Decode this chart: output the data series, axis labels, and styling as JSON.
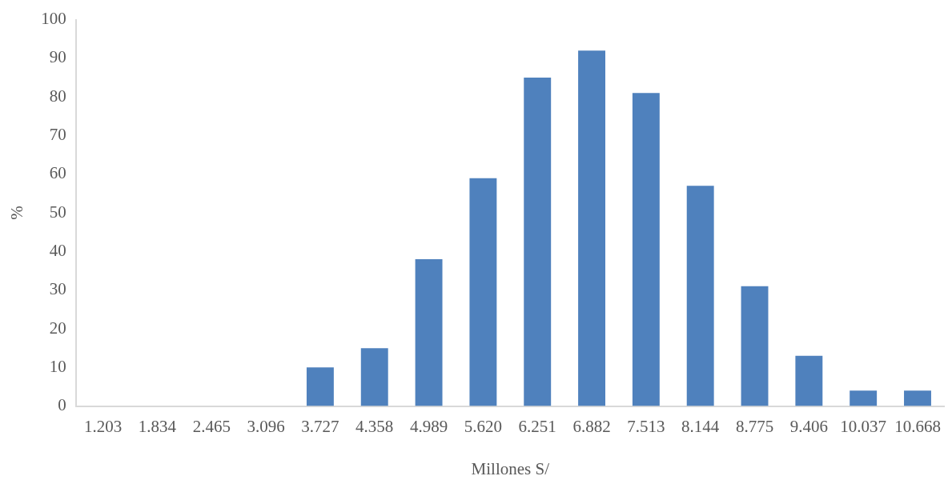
{
  "chart_data": {
    "type": "bar",
    "xlabel": "Millones S/",
    "ylabel": "%",
    "categories": [
      "1.203",
      "1.834",
      "2.465",
      "3.096",
      "3.727",
      "4.358",
      "4.989",
      "5.620",
      "6.251",
      "6.882",
      "7.513",
      "8.144",
      "8.775",
      "9.406",
      "10.037",
      "10.668"
    ],
    "values": [
      0,
      0,
      0,
      0,
      10,
      15,
      38,
      59,
      85,
      92,
      81,
      57,
      31,
      13,
      4,
      4
    ],
    "color": "#4f81bd",
    "ylim": [
      0,
      100
    ],
    "yticks": [
      0,
      10,
      20,
      30,
      40,
      50,
      60,
      70,
      80,
      90,
      100
    ],
    "grid": false,
    "legend": false
  }
}
